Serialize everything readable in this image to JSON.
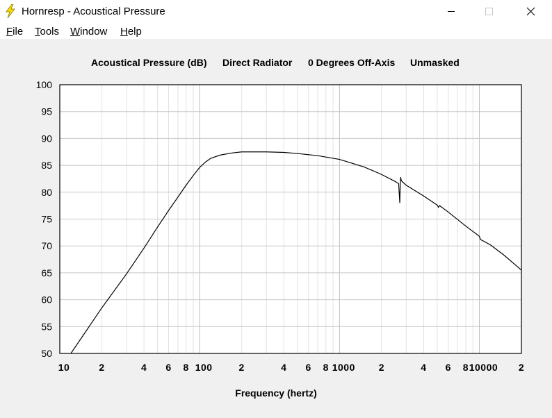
{
  "window": {
    "title": "Hornresp - Acoustical Pressure",
    "icon": "lightning-bolt-icon",
    "controls": [
      "minimize-icon",
      "maximize-icon",
      "close-icon"
    ]
  },
  "menu": {
    "items": [
      {
        "label": "File",
        "mnemonic": "F"
      },
      {
        "label": "Tools",
        "mnemonic": "T"
      },
      {
        "label": "Window",
        "mnemonic": "W"
      },
      {
        "label": "Help",
        "mnemonic": "H"
      }
    ]
  },
  "chart_data": {
    "type": "line",
    "title_parts": [
      "Acoustical Pressure (dB)",
      "Direct Radiator",
      "0 Degrees Off-Axis",
      "Unmasked"
    ],
    "xlabel": "Frequency (hertz)",
    "ylabel": "",
    "x_scale": "log",
    "xlim": [
      10,
      20000
    ],
    "ylim": [
      50,
      100
    ],
    "x_ticks": [
      {
        "value": 10,
        "label": "10"
      },
      {
        "value": 20,
        "label": "2"
      },
      {
        "value": 40,
        "label": "4"
      },
      {
        "value": 60,
        "label": "6"
      },
      {
        "value": 80,
        "label": "8"
      },
      {
        "value": 100,
        "label": "100"
      },
      {
        "value": 200,
        "label": "2"
      },
      {
        "value": 400,
        "label": "4"
      },
      {
        "value": 600,
        "label": "6"
      },
      {
        "value": 800,
        "label": "8"
      },
      {
        "value": 1000,
        "label": "1000"
      },
      {
        "value": 2000,
        "label": "2"
      },
      {
        "value": 4000,
        "label": "4"
      },
      {
        "value": 6000,
        "label": "6"
      },
      {
        "value": 8000,
        "label": "8"
      },
      {
        "value": 10000,
        "label": "10000"
      },
      {
        "value": 20000,
        "label": "2"
      }
    ],
    "y_ticks": [
      100,
      95,
      90,
      85,
      80,
      75,
      70,
      65,
      60,
      55,
      50
    ],
    "grid": true,
    "series": [
      {
        "color": "#000000",
        "x": [
          12,
          15,
          20,
          30,
          40,
          50,
          60,
          70,
          80,
          90,
          100,
          110,
          120,
          140,
          170,
          200,
          250,
          300,
          400,
          500,
          700,
          1000,
          1500,
          2000,
          2500,
          2650,
          2700,
          2720,
          2740,
          2760,
          2800,
          3000,
          4000,
          5000,
          5100,
          5200,
          6000,
          8000,
          10000,
          10200,
          12000,
          15000,
          20000
        ],
        "y": [
          50,
          53.7,
          58.5,
          64.8,
          69.6,
          73.5,
          76.6,
          79.1,
          81.3,
          83.1,
          84.6,
          85.6,
          86.3,
          86.9,
          87.3,
          87.5,
          87.5,
          87.5,
          87.4,
          87.2,
          86.8,
          86.1,
          84.7,
          83.3,
          82.0,
          81.6,
          78.0,
          81.5,
          82.8,
          82.3,
          82.0,
          81.3,
          79.3,
          77.6,
          77.2,
          77.5,
          76.3,
          73.7,
          71.8,
          71.2,
          70.2,
          68.3,
          65.5
        ]
      }
    ]
  }
}
